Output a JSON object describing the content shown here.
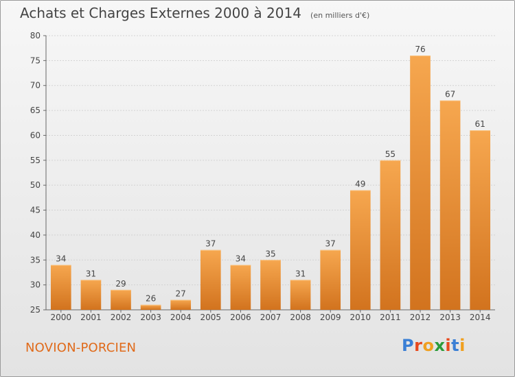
{
  "header": {
    "title": "Achats et Charges Externes 2000 à 2014",
    "subtitle": "(en milliers d'€)"
  },
  "footer": {
    "commune": "NOVION-PORCIEN",
    "logo_text": "Proxiti",
    "logo_colors": [
      "#3a7fd5",
      "#e8491d",
      "#f0a020",
      "#2c9b3a",
      "#e8491d",
      "#3a7fd5",
      "#f0a020"
    ]
  },
  "colors": {
    "bar_light": "#f6a74f",
    "bar_dark": "#d2731e",
    "title": "#444444",
    "commune": "#e06a1a"
  },
  "chart_data": {
    "type": "bar",
    "title": "Achats et Charges Externes 2000 à 2014",
    "subtitle": "(en milliers d'€)",
    "categories": [
      "2000",
      "2001",
      "2002",
      "2003",
      "2004",
      "2005",
      "2006",
      "2007",
      "2008",
      "2009",
      "2010",
      "2011",
      "2012",
      "2013",
      "2014"
    ],
    "values": [
      34,
      31,
      29,
      26,
      27,
      37,
      34,
      35,
      31,
      37,
      49,
      55,
      76,
      67,
      61
    ],
    "data_labels": [
      "34",
      "31",
      "29",
      "26",
      "27",
      "37",
      "34",
      "35",
      "31",
      "37",
      "49",
      "55",
      "76",
      "67",
      "61"
    ],
    "ylim": [
      25,
      80
    ],
    "yticks": [
      25,
      30,
      35,
      40,
      45,
      50,
      55,
      60,
      65,
      70,
      75,
      80
    ],
    "ytick_labels": [
      "25",
      "30",
      "35",
      "40",
      "45",
      "50",
      "55",
      "60",
      "65",
      "70",
      "75",
      "80"
    ],
    "grid": true,
    "xlabel": "",
    "ylabel": ""
  }
}
